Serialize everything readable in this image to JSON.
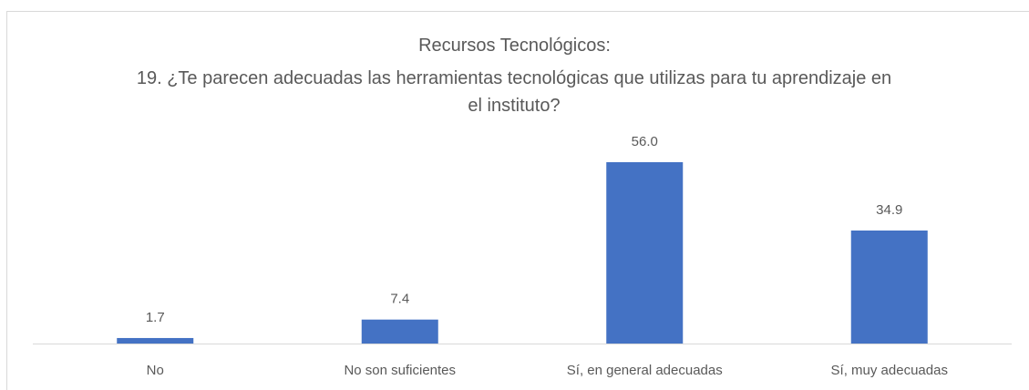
{
  "chart_data": {
    "type": "bar",
    "title": "Recursos Tecnológicos:",
    "subtitle": "19. ¿Te parecen adecuadas las herramientas tecnológicas que utilizas para tu aprendizaje en el instituto?",
    "categories": [
      "No",
      "No son suficientes",
      "Sí, en general adecuadas",
      "Sí, muy adecuadas"
    ],
    "values": [
      1.7,
      7.4,
      56.0,
      34.9
    ],
    "value_labels": [
      "1.7",
      "7.4",
      "56.0",
      "34.9"
    ],
    "color": "#4472c4"
  }
}
